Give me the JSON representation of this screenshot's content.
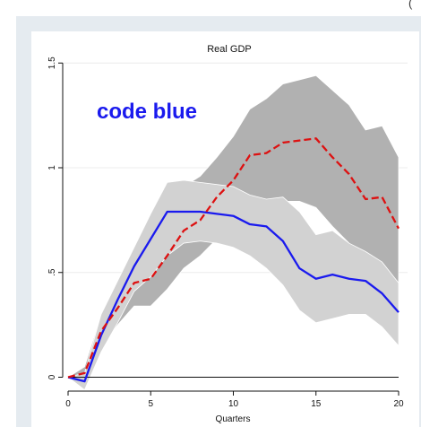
{
  "corner_glyph": "(",
  "chart_data": {
    "type": "line",
    "title": "Real GDP",
    "xlabel": "Quarters",
    "ylabel": "",
    "xlim": [
      0,
      20
    ],
    "ylim": [
      -0.05,
      1.5
    ],
    "x_ticks": [
      0,
      5,
      10,
      15,
      20
    ],
    "x_tick_labels": [
      "0",
      "5",
      "10",
      "15",
      "20"
    ],
    "y_ticks": [
      0,
      0.5,
      1,
      1.5
    ],
    "y_tick_labels": [
      "0",
      ".5",
      "1",
      "1.5"
    ],
    "annotation": "code blue",
    "grid": true,
    "x": [
      0,
      1,
      2,
      3,
      4,
      5,
      6,
      7,
      8,
      9,
      10,
      11,
      12,
      13,
      14,
      15,
      16,
      17,
      18,
      19,
      20
    ],
    "series": [
      {
        "values": [
          0,
          0.02,
          0.22,
          0.33,
          0.45,
          0.47,
          0.58,
          0.7,
          0.75,
          0.86,
          0.94,
          1.06,
          1.07,
          1.12,
          1.13,
          1.14,
          1.05,
          0.97,
          0.85,
          0.86,
          0.71
        ],
        "color": "#dd1111",
        "style": "dashed",
        "band": {
          "lower": [
            0,
            -0.01,
            0.14,
            0.25,
            0.34,
            0.34,
            0.42,
            0.52,
            0.58,
            0.66,
            0.73,
            0.79,
            0.83,
            0.84,
            0.84,
            0.81,
            0.72,
            0.64,
            0.54,
            0.45,
            0.37
          ],
          "upper": [
            0,
            0.05,
            0.3,
            0.42,
            0.58,
            0.62,
            0.76,
            0.91,
            0.96,
            1.05,
            1.15,
            1.28,
            1.33,
            1.4,
            1.42,
            1.44,
            1.37,
            1.3,
            1.18,
            1.2,
            1.05
          ],
          "color": "#b1b1b1"
        }
      },
      {
        "values": [
          0,
          -0.02,
          0.2,
          0.37,
          0.53,
          0.66,
          0.79,
          0.79,
          0.79,
          0.78,
          0.77,
          0.73,
          0.72,
          0.65,
          0.52,
          0.47,
          0.49,
          0.47,
          0.46,
          0.4,
          0.31
        ],
        "color": "#1a1aee",
        "style": "solid",
        "band": {
          "lower": [
            0,
            -0.06,
            0.12,
            0.26,
            0.41,
            0.48,
            0.58,
            0.64,
            0.65,
            0.64,
            0.62,
            0.58,
            0.52,
            0.44,
            0.32,
            0.26,
            0.28,
            0.3,
            0.3,
            0.24,
            0.15
          ],
          "upper": [
            0,
            0.02,
            0.3,
            0.46,
            0.62,
            0.78,
            0.93,
            0.94,
            0.93,
            0.92,
            0.91,
            0.87,
            0.85,
            0.86,
            0.79,
            0.68,
            0.7,
            0.64,
            0.6,
            0.55,
            0.45
          ],
          "color": "#d2d2d2"
        }
      }
    ]
  }
}
